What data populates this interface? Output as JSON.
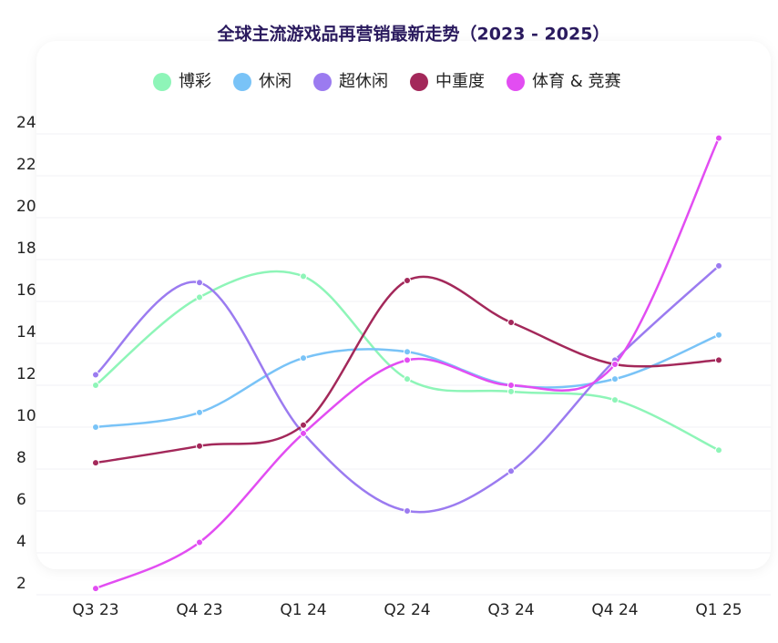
{
  "chart_data": {
    "type": "line",
    "title": "全球主流游戏品再营销最新走势（2023 - 2025）",
    "categories": [
      "Q3 23",
      "Q4 23",
      "Q1 24",
      "Q2 24",
      "Q3 24",
      "Q4 24",
      "Q1 25"
    ],
    "series": [
      {
        "name": "博彩",
        "color": "#8ef5b8",
        "values": [
          12.0,
          16.2,
          17.2,
          12.3,
          11.7,
          11.3,
          8.9
        ]
      },
      {
        "name": "休闲",
        "color": "#79c3f7",
        "values": [
          10.0,
          10.7,
          13.3,
          13.6,
          12.0,
          12.3,
          14.4
        ]
      },
      {
        "name": "超休闲",
        "color": "#9b7bf0",
        "values": [
          12.5,
          16.9,
          9.7,
          6.0,
          7.9,
          13.2,
          17.7
        ]
      },
      {
        "name": "中重度",
        "color": "#a3285a",
        "values": [
          8.3,
          9.1,
          10.1,
          17.0,
          15.0,
          13.0,
          13.2
        ]
      },
      {
        "name": "体育 & 竞赛",
        "color": "#e24df2",
        "values": [
          2.3,
          4.5,
          9.7,
          13.2,
          12.0,
          13.0,
          23.8
        ]
      }
    ],
    "ylim": [
      2,
      24
    ],
    "yticks": [
      2,
      4,
      6,
      8,
      10,
      12,
      14,
      16,
      18,
      20,
      22,
      24
    ],
    "grid": true
  }
}
